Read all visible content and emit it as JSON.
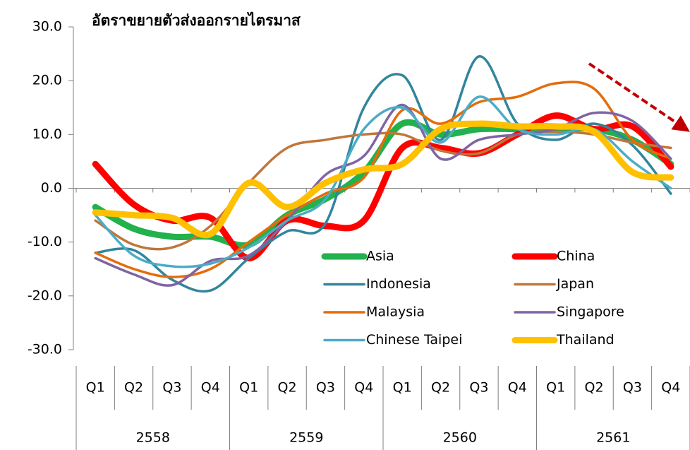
{
  "chart_data": {
    "type": "line",
    "title": "อัตราขยายตัวส่งออกรายไตรมาส",
    "categories": [
      "Q1",
      "Q2",
      "Q3",
      "Q4",
      "Q1",
      "Q2",
      "Q3",
      "Q4",
      "Q1",
      "Q2",
      "Q3",
      "Q4",
      "Q1",
      "Q2",
      "Q3",
      "Q4"
    ],
    "groups": [
      "2558",
      "2559",
      "2560",
      "2561"
    ],
    "ylim": [
      -30,
      30
    ],
    "yticks": [
      {
        "value": -30,
        "label": "-30.0"
      },
      {
        "value": -20,
        "label": "-20.0"
      },
      {
        "value": -10,
        "label": "-10.0"
      },
      {
        "value": 0,
        "label": "0.0"
      },
      {
        "value": 10,
        "label": "10.0"
      },
      {
        "value": 20,
        "label": "20.0"
      },
      {
        "value": 30,
        "label": "30.0"
      }
    ],
    "smooth": true,
    "series": [
      {
        "name": "Asia",
        "color": "#22b14c",
        "width": 9,
        "values": [
          -3.5,
          -7.5,
          -9,
          -9,
          -10.5,
          -5,
          -2,
          3,
          12,
          10,
          11,
          11,
          11,
          11,
          9,
          4.5
        ]
      },
      {
        "name": "China",
        "color": "#ff0000",
        "width": 9,
        "values": [
          4.5,
          -3,
          -6,
          -5.5,
          -13,
          -6,
          -7,
          -6,
          7.5,
          7.5,
          6.5,
          10,
          13.5,
          11,
          11.5,
          4
        ]
      },
      {
        "name": "Indonesia",
        "color": "#31859c",
        "width": 3.5,
        "values": [
          -12,
          -11.5,
          -17,
          -19,
          -13,
          -8,
          -6.5,
          15,
          21,
          9,
          24.5,
          12,
          9,
          12,
          8,
          -1
        ]
      },
      {
        "name": "Japan",
        "color": "#c0763a",
        "width": 3.5,
        "values": [
          -6,
          -10.5,
          -11,
          -7,
          1,
          7.5,
          9,
          10,
          10,
          7,
          6.5,
          10,
          10.5,
          10,
          8.5,
          7.5
        ]
      },
      {
        "name": "Malaysia",
        "color": "#e46c0a",
        "width": 3.5,
        "values": [
          -12,
          -15,
          -16.5,
          -15,
          -10,
          -5,
          -1,
          2,
          14.5,
          12,
          16,
          17,
          19.5,
          18.5,
          9,
          5.5
        ]
      },
      {
        "name": "Singapore",
        "color": "#8064a2",
        "width": 3.5,
        "values": [
          -13,
          -16,
          -18,
          -13.5,
          -12.5,
          -6,
          2.5,
          6,
          15.5,
          5.5,
          9,
          10,
          11,
          14,
          12.5,
          5.5
        ]
      },
      {
        "name": "Chinese Taipei",
        "color": "#4bacc6",
        "width": 3.5,
        "values": [
          -5,
          -12.5,
          -14.5,
          -14,
          -11,
          -6,
          -2,
          11,
          15,
          8.5,
          17,
          11,
          10,
          11,
          5,
          0
        ]
      },
      {
        "name": "Thailand",
        "color": "#ffc000",
        "width": 9,
        "values": [
          -4.5,
          -5,
          -5.5,
          -8.5,
          1,
          -3.5,
          1,
          3.5,
          4.5,
          11,
          12,
          11.5,
          11.5,
          10.5,
          3,
          2
        ]
      }
    ]
  }
}
